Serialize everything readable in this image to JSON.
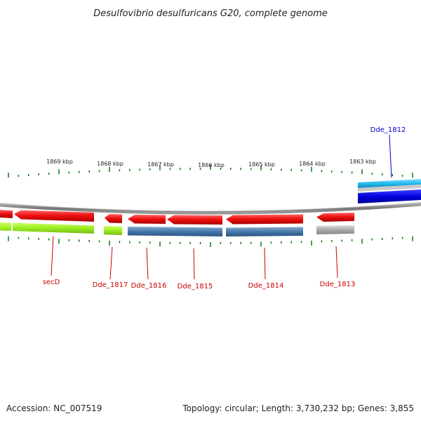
{
  "title": "Desulfovibrio desulfuricans G20, complete genome",
  "footer": {
    "accession": "Accession: NC_007519",
    "summary": "Topology: circular; Length: 3,730,232 bp; Genes: 3,855"
  },
  "scale_labels": [
    "1869 kbp",
    "1868 kbp",
    "1867 kbp",
    "1866 kbp",
    "1865 kbp",
    "1864 kbp",
    "1863 kbp"
  ],
  "genes": [
    {
      "name": "secD",
      "strand": "reverse",
      "color": "#cc0000"
    },
    {
      "name": "Dde_1817",
      "strand": "reverse",
      "color": "#cc0000"
    },
    {
      "name": "Dde_1816",
      "strand": "reverse",
      "color": "#cc0000"
    },
    {
      "name": "Dde_1815",
      "strand": "reverse",
      "color": "#cc0000"
    },
    {
      "name": "Dde_1814",
      "strand": "reverse",
      "color": "#cc0000"
    },
    {
      "name": "Dde_1813",
      "strand": "reverse",
      "color": "#cc0000"
    },
    {
      "name": "Dde_1812",
      "strand": "forward",
      "color": "#0000cc"
    }
  ],
  "colors": {
    "gene_red": "#ee1111",
    "gene_blue": "#0000dd",
    "cog_lime": "#99ee22",
    "cog_steelblue": "#4477aa",
    "cog_gray": "#aaaaaa",
    "cog_cyan": "#22bbee",
    "tick_green": "#117711",
    "backbone": "#888888"
  }
}
